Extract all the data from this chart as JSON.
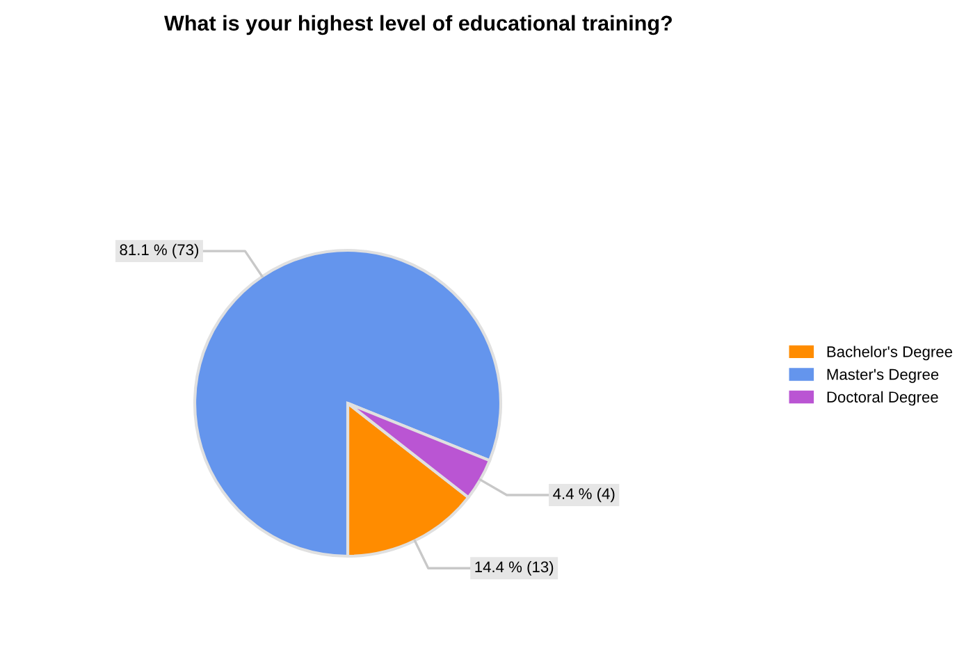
{
  "chart_data": {
    "type": "pie",
    "title": "What is your highest level of educational training?",
    "categories": [
      "Bachelor's Degree",
      "Master's Degree",
      "Doctoral Degree"
    ],
    "values": [
      13,
      73,
      4
    ],
    "colors": [
      "#ff8c00",
      "#6495ed",
      "#ba55d3"
    ],
    "value_labels": [
      "14.4 % (13)",
      "81.1 % (73)",
      "4.4 % (4)"
    ],
    "legend": "right"
  }
}
